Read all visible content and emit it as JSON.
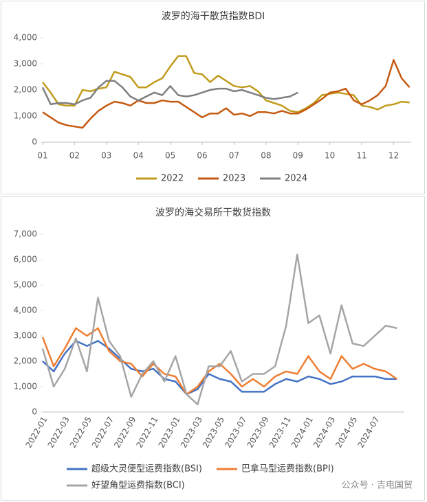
{
  "chart_data": [
    {
      "type": "line",
      "title": "波罗的海干散货指数BDI",
      "x": [
        1,
        1.25,
        1.5,
        1.75,
        2,
        2.25,
        2.5,
        2.75,
        3,
        3.25,
        3.5,
        3.75,
        4,
        4.25,
        4.5,
        4.75,
        5,
        5.25,
        5.5,
        5.75,
        6,
        6.25,
        6.5,
        6.75,
        7,
        7.25,
        7.5,
        7.75,
        8,
        8.25,
        8.5,
        8.75,
        9,
        9.25,
        9.5,
        9.75,
        10,
        10.25,
        10.5,
        10.75,
        11,
        11.25,
        11.5,
        11.75,
        12,
        12.25,
        12.5
      ],
      "xlim": [
        1,
        12.55
      ],
      "xticks": [
        {
          "value": 1,
          "label": "01"
        },
        {
          "value": 2,
          "label": "02"
        },
        {
          "value": 3,
          "label": "03"
        },
        {
          "value": 4,
          "label": "04"
        },
        {
          "value": 5,
          "label": "05"
        },
        {
          "value": 6,
          "label": "06"
        },
        {
          "value": 7,
          "label": "07"
        },
        {
          "value": 8,
          "label": "08"
        },
        {
          "value": 9,
          "label": "09"
        },
        10,
        11,
        12
      ],
      "ylim": [
        0,
        4000
      ],
      "yticks": [
        0,
        {
          "value": 1000,
          "label": "1,000"
        },
        {
          "value": 2000,
          "label": "2,000"
        },
        {
          "value": 3000,
          "label": "3,000"
        },
        {
          "value": 4000,
          "label": "4,000"
        }
      ],
      "legend": "bottom",
      "series": [
        {
          "name": "2022",
          "color": "#c09b1c",
          "values": [
            2300,
            1900,
            1450,
            1400,
            1400,
            2000,
            1950,
            2050,
            2100,
            2700,
            2600,
            2500,
            2100,
            2100,
            2300,
            2450,
            2900,
            3300,
            3300,
            2650,
            2600,
            2300,
            2550,
            2350,
            2150,
            2100,
            2150,
            1950,
            1600,
            1500,
            1400,
            1200,
            1150,
            1300,
            1500,
            1800,
            1850,
            1900,
            1850,
            1800,
            1400,
            1350,
            1250,
            1400,
            1450,
            1550,
            1520
          ]
        },
        {
          "name": "2023",
          "color": "#c55a11",
          "values": [
            1150,
            950,
            750,
            650,
            600,
            550,
            900,
            1200,
            1400,
            1550,
            1500,
            1400,
            1600,
            1500,
            1500,
            1600,
            1550,
            1550,
            1350,
            1150,
            950,
            1100,
            1100,
            1300,
            1050,
            1100,
            1000,
            1150,
            1150,
            1100,
            1200,
            1100,
            1100,
            1250,
            1450,
            1650,
            1900,
            1950,
            2050,
            1600,
            1450,
            1600,
            1800,
            2150,
            3150,
            2450,
            2100
          ]
        },
        {
          "name": "2024",
          "color": "#7f7f7f",
          "values": [
            2100,
            1450,
            1500,
            1500,
            1450,
            1600,
            1700,
            2100,
            2350,
            2350,
            2100,
            1750,
            1600,
            1750,
            1900,
            1800,
            2150,
            1800,
            1750,
            1800,
            1900,
            2000,
            2050,
            2050,
            1950,
            2000,
            1900,
            1800,
            1700,
            1650,
            1700,
            1750,
            1900,
            null,
            null,
            null,
            null,
            null,
            null,
            null,
            null,
            null,
            null,
            null,
            null,
            null,
            null
          ]
        }
      ]
    },
    {
      "type": "line",
      "title": "波罗的海交易所干散货指数",
      "categories": [
        "2022-01",
        null,
        "2022-03",
        null,
        "2022-05",
        null,
        "2022-07",
        null,
        "2022-09",
        null,
        "2022-11",
        null,
        "2023-01",
        null,
        "2023-03",
        null,
        "2023-05",
        null,
        "2023-07",
        null,
        "2023-09",
        null,
        "2023-11",
        null,
        "2024-01",
        null,
        "2024-03",
        null,
        "2024-05",
        null,
        "2024-07",
        null,
        null
      ],
      "ylim": [
        0,
        7000
      ],
      "yticks": [
        0,
        {
          "value": 1000,
          "label": "1,000"
        },
        {
          "value": 2000,
          "label": "2,000"
        },
        {
          "value": 3000,
          "label": "3,000"
        },
        {
          "value": 4000,
          "label": "4,000"
        },
        {
          "value": 5000,
          "label": "5,000"
        },
        {
          "value": 6000,
          "label": "6,000"
        },
        {
          "value": 7000,
          "label": "7,000"
        }
      ],
      "legend": "bottom-left",
      "watermark": "公众号 · 吉电国贸",
      "series": [
        {
          "name": "超级大灵便型运费指数(BSI)",
          "color": "#4472c4",
          "values": [
            2000,
            1600,
            2300,
            2800,
            2600,
            2800,
            2500,
            2100,
            1700,
            1600,
            1700,
            1300,
            1200,
            700,
            900,
            1500,
            1300,
            1200,
            800,
            800,
            800,
            1100,
            1300,
            1200,
            1400,
            1300,
            1100,
            1200,
            1400,
            1400,
            1400,
            1300,
            1300
          ]
        },
        {
          "name": "巴拿马型运费指数(BPI)",
          "color": "#ed7d31",
          "values": [
            2950,
            1800,
            2500,
            3300,
            3000,
            3300,
            2400,
            2000,
            1900,
            1400,
            1900,
            1500,
            1400,
            700,
            1000,
            1600,
            1900,
            1500,
            1000,
            1300,
            1000,
            1400,
            1600,
            1500,
            2200,
            1600,
            1300,
            2200,
            1700,
            1900,
            1700,
            1600,
            1300
          ]
        },
        {
          "name": "好望角型运费指数(BCI)",
          "color": "#a5a5a5",
          "values": [
            2500,
            1000,
            1700,
            2900,
            1600,
            4500,
            2800,
            2200,
            600,
            1500,
            2000,
            1200,
            2200,
            700,
            300,
            1800,
            1800,
            2400,
            1200,
            1500,
            1500,
            1800,
            3400,
            6200,
            3500,
            3800,
            2300,
            4200,
            2700,
            2600,
            3000,
            3400,
            3300
          ]
        }
      ]
    }
  ]
}
